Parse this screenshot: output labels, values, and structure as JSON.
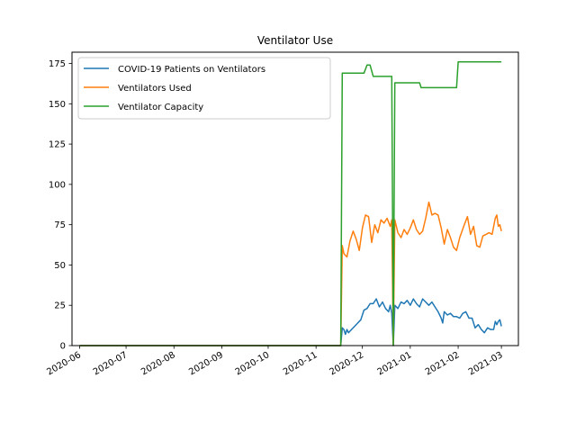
{
  "chart_data": {
    "type": "line",
    "title": "Ventilator Use",
    "xlabel": "",
    "ylabel": "",
    "x_axis_type": "date",
    "xlim": [
      "2020-05-27",
      "2021-03-12"
    ],
    "ylim": [
      0,
      182
    ],
    "x_ticks": [
      "2020-06",
      "2020-07",
      "2020-08",
      "2020-09",
      "2020-10",
      "2020-11",
      "2020-12",
      "2021-01",
      "2021-02",
      "2021-03"
    ],
    "y_ticks": [
      0,
      25,
      50,
      75,
      100,
      125,
      150,
      175
    ],
    "grid": false,
    "legend_position": "top-left",
    "series": [
      {
        "name": "COVID-19 Patients on Ventilators",
        "color": "#1f77b4",
        "points": [
          [
            "2020-06-01",
            0
          ],
          [
            "2020-11-17",
            0
          ],
          [
            "2020-11-18",
            11
          ],
          [
            "2020-11-19",
            10
          ],
          [
            "2020-11-20",
            7
          ],
          [
            "2020-11-21",
            10
          ],
          [
            "2020-11-22",
            8
          ],
          [
            "2020-11-24",
            10
          ],
          [
            "2020-11-26",
            12
          ],
          [
            "2020-11-28",
            14
          ],
          [
            "2020-11-30",
            16
          ],
          [
            "2020-12-02",
            22
          ],
          [
            "2020-12-04",
            23
          ],
          [
            "2020-12-06",
            26
          ],
          [
            "2020-12-08",
            26
          ],
          [
            "2020-12-10",
            29
          ],
          [
            "2020-12-12",
            24
          ],
          [
            "2020-12-14",
            27
          ],
          [
            "2020-12-16",
            23
          ],
          [
            "2020-12-18",
            21
          ],
          [
            "2020-12-19",
            25
          ],
          [
            "2020-12-20",
            20
          ],
          [
            "2020-12-21",
            0
          ],
          [
            "2020-12-22",
            25
          ],
          [
            "2020-12-24",
            23
          ],
          [
            "2020-12-26",
            27
          ],
          [
            "2020-12-28",
            26
          ],
          [
            "2020-12-30",
            28
          ],
          [
            "2021-01-01",
            25
          ],
          [
            "2021-01-03",
            29
          ],
          [
            "2021-01-05",
            26
          ],
          [
            "2021-01-07",
            24
          ],
          [
            "2021-01-09",
            29
          ],
          [
            "2021-01-11",
            27
          ],
          [
            "2021-01-13",
            25
          ],
          [
            "2021-01-15",
            27
          ],
          [
            "2021-01-17",
            24
          ],
          [
            "2021-01-19",
            21
          ],
          [
            "2021-01-21",
            17
          ],
          [
            "2021-01-22",
            14
          ],
          [
            "2021-01-23",
            21
          ],
          [
            "2021-01-25",
            19
          ],
          [
            "2021-01-27",
            20
          ],
          [
            "2021-01-29",
            18
          ],
          [
            "2021-01-31",
            18
          ],
          [
            "2021-02-02",
            17
          ],
          [
            "2021-02-04",
            20
          ],
          [
            "2021-02-06",
            21
          ],
          [
            "2021-02-08",
            17
          ],
          [
            "2021-02-10",
            17
          ],
          [
            "2021-02-12",
            11
          ],
          [
            "2021-02-14",
            13
          ],
          [
            "2021-02-16",
            10
          ],
          [
            "2021-02-18",
            8
          ],
          [
            "2021-02-20",
            11
          ],
          [
            "2021-02-22",
            10
          ],
          [
            "2021-02-24",
            10
          ],
          [
            "2021-02-25",
            15
          ],
          [
            "2021-02-26",
            13
          ],
          [
            "2021-02-27",
            15
          ],
          [
            "2021-02-28",
            16
          ],
          [
            "2021-03-01",
            12
          ]
        ]
      },
      {
        "name": "Ventilators Used",
        "color": "#ff7f0e",
        "points": [
          [
            "2020-06-01",
            0
          ],
          [
            "2020-11-17",
            0
          ],
          [
            "2020-11-18",
            62
          ],
          [
            "2020-11-19",
            57
          ],
          [
            "2020-11-21",
            55
          ],
          [
            "2020-11-23",
            65
          ],
          [
            "2020-11-25",
            71
          ],
          [
            "2020-11-27",
            66
          ],
          [
            "2020-11-29",
            59
          ],
          [
            "2020-12-01",
            73
          ],
          [
            "2020-12-03",
            81
          ],
          [
            "2020-12-05",
            80
          ],
          [
            "2020-12-07",
            64
          ],
          [
            "2020-12-09",
            75
          ],
          [
            "2020-12-11",
            70
          ],
          [
            "2020-12-13",
            78
          ],
          [
            "2020-12-15",
            76
          ],
          [
            "2020-12-17",
            79
          ],
          [
            "2020-12-19",
            74
          ],
          [
            "2020-12-20",
            78
          ],
          [
            "2020-12-21",
            0
          ],
          [
            "2020-12-22",
            78
          ],
          [
            "2020-12-24",
            70
          ],
          [
            "2020-12-26",
            67
          ],
          [
            "2020-12-28",
            72
          ],
          [
            "2020-12-30",
            69
          ],
          [
            "2021-01-01",
            73
          ],
          [
            "2021-01-03",
            78
          ],
          [
            "2021-01-05",
            72
          ],
          [
            "2021-01-07",
            69
          ],
          [
            "2021-01-09",
            71
          ],
          [
            "2021-01-11",
            79
          ],
          [
            "2021-01-13",
            89
          ],
          [
            "2021-01-15",
            81
          ],
          [
            "2021-01-17",
            82
          ],
          [
            "2021-01-19",
            81
          ],
          [
            "2021-01-21",
            73
          ],
          [
            "2021-01-23",
            63
          ],
          [
            "2021-01-25",
            72
          ],
          [
            "2021-01-27",
            67
          ],
          [
            "2021-01-29",
            61
          ],
          [
            "2021-01-31",
            59
          ],
          [
            "2021-02-02",
            67
          ],
          [
            "2021-02-05",
            75
          ],
          [
            "2021-02-07",
            80
          ],
          [
            "2021-02-09",
            69
          ],
          [
            "2021-02-11",
            74
          ],
          [
            "2021-02-13",
            62
          ],
          [
            "2021-02-15",
            61
          ],
          [
            "2021-02-17",
            68
          ],
          [
            "2021-02-19",
            69
          ],
          [
            "2021-02-21",
            70
          ],
          [
            "2021-02-23",
            69
          ],
          [
            "2021-02-25",
            79
          ],
          [
            "2021-02-26",
            81
          ],
          [
            "2021-02-27",
            74
          ],
          [
            "2021-02-28",
            75
          ],
          [
            "2021-03-01",
            71
          ]
        ]
      },
      {
        "name": "Ventilator Capacity",
        "color": "#2ca02c",
        "points": [
          [
            "2020-06-01",
            0
          ],
          [
            "2020-11-17",
            0
          ],
          [
            "2020-11-18",
            169
          ],
          [
            "2020-12-02",
            169
          ],
          [
            "2020-12-04",
            174
          ],
          [
            "2020-12-06",
            174
          ],
          [
            "2020-12-08",
            167
          ],
          [
            "2020-12-20",
            167
          ],
          [
            "2020-12-21",
            0
          ],
          [
            "2020-12-22",
            163
          ],
          [
            "2021-01-07",
            163
          ],
          [
            "2021-01-08",
            160
          ],
          [
            "2021-01-31",
            160
          ],
          [
            "2021-02-01",
            176
          ],
          [
            "2021-03-01",
            176
          ]
        ]
      }
    ]
  }
}
